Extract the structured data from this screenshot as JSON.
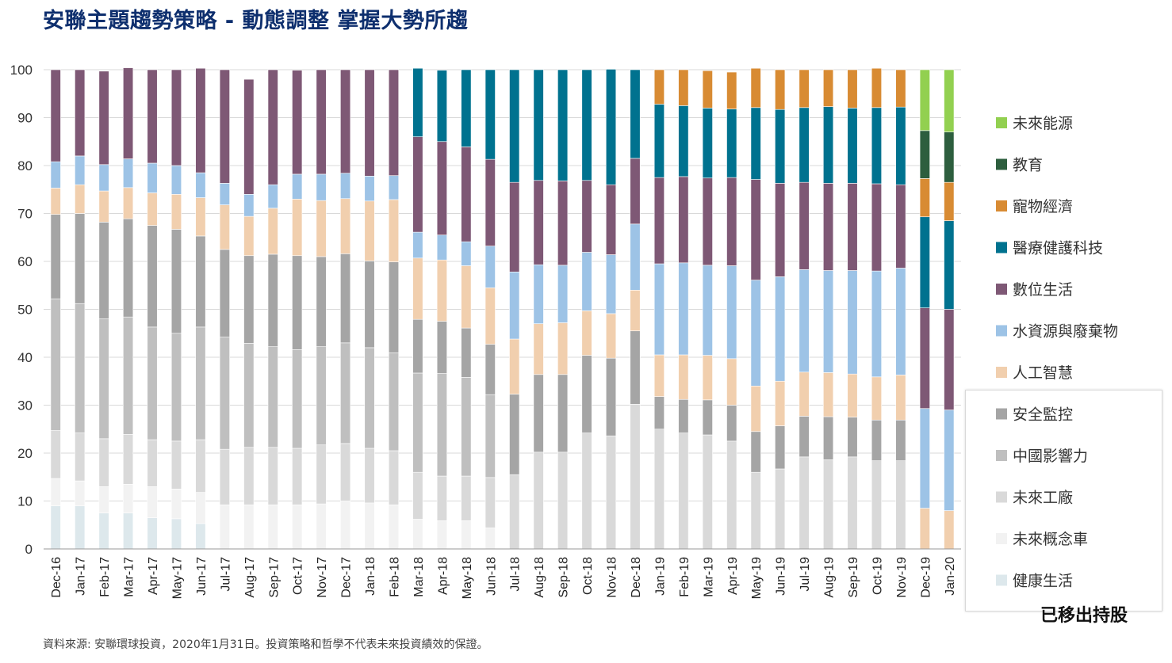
{
  "title": "安聯主題趨勢策略 - 動態調整  掌握大勢所趨",
  "footnote": "資料來源: 安聯環球投資，2020年1月31日。投資策略和哲學不代表未來投資績效的保證。",
  "removed_label": "已移出持股",
  "chart_data": {
    "type": "bar",
    "stacked": true,
    "ylim": [
      0,
      100
    ],
    "yticks": [
      0,
      10,
      20,
      30,
      40,
      50,
      60,
      70,
      80,
      90,
      100
    ],
    "grid": true,
    "legend_position": "right",
    "categories": [
      "Dec-16",
      "Jan-17",
      "Feb-17",
      "Mar-17",
      "Apr-17",
      "May-17",
      "Jun-17",
      "Jul-17",
      "Aug-17",
      "Sep-17",
      "Oct-17",
      "Nov-17",
      "Dec-17",
      "Jan-18",
      "Feb-18",
      "Mar-18",
      "Apr-18",
      "May-18",
      "Jun-18",
      "Jul-18",
      "Aug-18",
      "Sep-18",
      "Oct-18",
      "Nov-18",
      "Dec-18",
      "Jan-19",
      "Feb-19",
      "Mar-19",
      "Apr-19",
      "May-19",
      "Jun-19",
      "Jul-19",
      "Aug-19",
      "Sep-19",
      "Oct-19",
      "Nov-19",
      "Dec-19",
      "Jan-20"
    ],
    "series": [
      {
        "name": "健康生活",
        "color": "#dde8ec",
        "values": [
          9,
          9,
          7.5,
          7.5,
          6.5,
          6.3,
          5.3,
          0,
          0,
          0,
          0,
          0,
          0,
          0,
          0,
          0,
          0,
          0,
          0,
          0,
          0,
          0,
          0,
          0,
          0,
          0,
          0,
          0,
          0,
          0,
          0,
          0,
          0,
          0,
          0,
          0,
          0,
          0
        ]
      },
      {
        "name": "未來概念車",
        "color": "#f2f2f2",
        "values": [
          5.7,
          5.2,
          5.5,
          6,
          6.5,
          6.2,
          6.5,
          9.2,
          9.2,
          9.2,
          9.2,
          9.4,
          10,
          9.6,
          9.2,
          6.2,
          5.9,
          5.9,
          4.4,
          0,
          0,
          0,
          0,
          0,
          0,
          0,
          0,
          0,
          0,
          0,
          0,
          0,
          0,
          0,
          0,
          0,
          0,
          0
        ]
      },
      {
        "name": "未來工廠",
        "color": "#d9d9d9",
        "values": [
          10,
          10,
          10,
          10.4,
          9.8,
          10,
          11,
          11.6,
          12,
          12,
          11.8,
          12.3,
          12,
          11.4,
          11.3,
          9.8,
          9.3,
          9.3,
          10.5,
          15.5,
          20.2,
          20.2,
          24.2,
          23.6,
          30.2,
          25,
          24.2,
          23.8,
          22.5,
          16,
          16.7,
          19.2,
          18.6,
          19.2,
          18.4,
          18.4,
          0,
          0
        ]
      },
      {
        "name": "中國影響力",
        "color": "#bfbfbf",
        "values": [
          27.5,
          27,
          25,
          24.5,
          23.5,
          22.5,
          23.5,
          23.4,
          21.7,
          21,
          20.6,
          20.5,
          21,
          21,
          20.4,
          20.7,
          21.4,
          20.6,
          17.3,
          0,
          0,
          0,
          0,
          0,
          0,
          0,
          0,
          0,
          0,
          0,
          0,
          0,
          0,
          0,
          0,
          0,
          0,
          0
        ]
      },
      {
        "name": "安全監控",
        "color": "#a5a5a5",
        "values": [
          17.6,
          18.8,
          20.2,
          20.5,
          21.2,
          21.7,
          19,
          18.3,
          18.3,
          19.3,
          19.6,
          18.8,
          18.6,
          18.1,
          19,
          11.2,
          10.9,
          10.3,
          10.5,
          16.8,
          16.2,
          16.2,
          16.2,
          16.2,
          15.3,
          6.8,
          7,
          7.3,
          7.5,
          8.5,
          9,
          8.5,
          9,
          8.3,
          8.5,
          8.5,
          0,
          0
        ]
      },
      {
        "name": "人工智慧",
        "color": "#f1cfae",
        "values": [
          5.5,
          6,
          6.5,
          6.5,
          6.8,
          7.3,
          8,
          9.3,
          8.2,
          9.6,
          11.8,
          11.7,
          11.5,
          12.5,
          13,
          12.8,
          12.8,
          13,
          11.8,
          11.5,
          10.6,
          10.8,
          9.3,
          9.3,
          8.5,
          8.7,
          9.3,
          9.3,
          9.7,
          9.5,
          9.3,
          9.2,
          9.2,
          9,
          9,
          9.4,
          8.5,
          8
        ]
      },
      {
        "name": "水資源與廢棄物",
        "color": "#9dc3e6",
        "values": [
          5.5,
          6,
          5.5,
          6,
          6.2,
          6,
          5.2,
          4.5,
          4.6,
          4.9,
          5.2,
          5.5,
          5.3,
          5.2,
          5,
          5.4,
          5.2,
          5,
          8.7,
          14,
          12.3,
          12,
          12.2,
          12.3,
          13.8,
          19,
          19.2,
          18.8,
          19.4,
          22.1,
          21.8,
          21.4,
          21.3,
          21.6,
          22.1,
          22.3,
          20.8,
          21
        ]
      },
      {
        "name": "數位生活",
        "color": "#7e5875",
        "values": [
          19.2,
          18,
          19.5,
          19,
          19.5,
          20,
          21.8,
          23.7,
          24,
          24,
          21.7,
          21.8,
          21.6,
          22.2,
          22.1,
          19.9,
          19.5,
          19.8,
          18.1,
          18.7,
          17.6,
          17.6,
          15,
          14.6,
          13.7,
          18,
          18,
          18.2,
          18.4,
          21,
          19.5,
          18.2,
          18.2,
          18.2,
          18.2,
          17.4,
          21,
          21
        ]
      },
      {
        "name": "醫療健護科技",
        "color": "#00728f",
        "values": [
          0,
          0,
          0,
          0,
          0,
          0,
          0,
          0,
          0,
          0,
          0,
          0,
          0,
          0,
          0,
          14.3,
          14.9,
          16.1,
          18.7,
          23.5,
          23.1,
          23.2,
          23.1,
          24.1,
          18.5,
          15.3,
          14.8,
          14.6,
          14.3,
          15,
          15.4,
          15.6,
          16,
          15.7,
          15.9,
          16.2,
          19,
          18.5
        ]
      },
      {
        "name": "寵物經濟",
        "color": "#d88b33",
        "values": [
          0,
          0,
          0,
          0,
          0,
          0,
          0,
          0,
          0,
          0,
          0,
          0,
          0,
          0,
          0,
          0,
          0,
          0,
          0,
          0,
          0,
          0,
          0,
          0,
          0,
          7.2,
          7.5,
          7.8,
          7.7,
          8.2,
          8.3,
          7.9,
          7.7,
          8,
          8.2,
          7.8,
          8,
          8
        ]
      },
      {
        "name": "教育",
        "color": "#2d5e3e",
        "values": [
          0,
          0,
          0,
          0,
          0,
          0,
          0,
          0,
          0,
          0,
          0,
          0,
          0,
          0,
          0,
          0,
          0,
          0,
          0,
          0,
          0,
          0,
          0,
          0,
          0,
          0,
          0,
          0,
          0,
          0,
          0,
          0,
          0,
          0,
          0,
          0,
          10,
          10.5
        ]
      },
      {
        "name": "未來能源",
        "color": "#92d050",
        "values": [
          0,
          0,
          0,
          0,
          0,
          0,
          0,
          0,
          0,
          0,
          0,
          0,
          0,
          0,
          0,
          0,
          0,
          0,
          0,
          0,
          0,
          0,
          0,
          0,
          0,
          0,
          0,
          0,
          0,
          0,
          0,
          0,
          0,
          0,
          0,
          0,
          12.7,
          13
        ]
      }
    ]
  }
}
